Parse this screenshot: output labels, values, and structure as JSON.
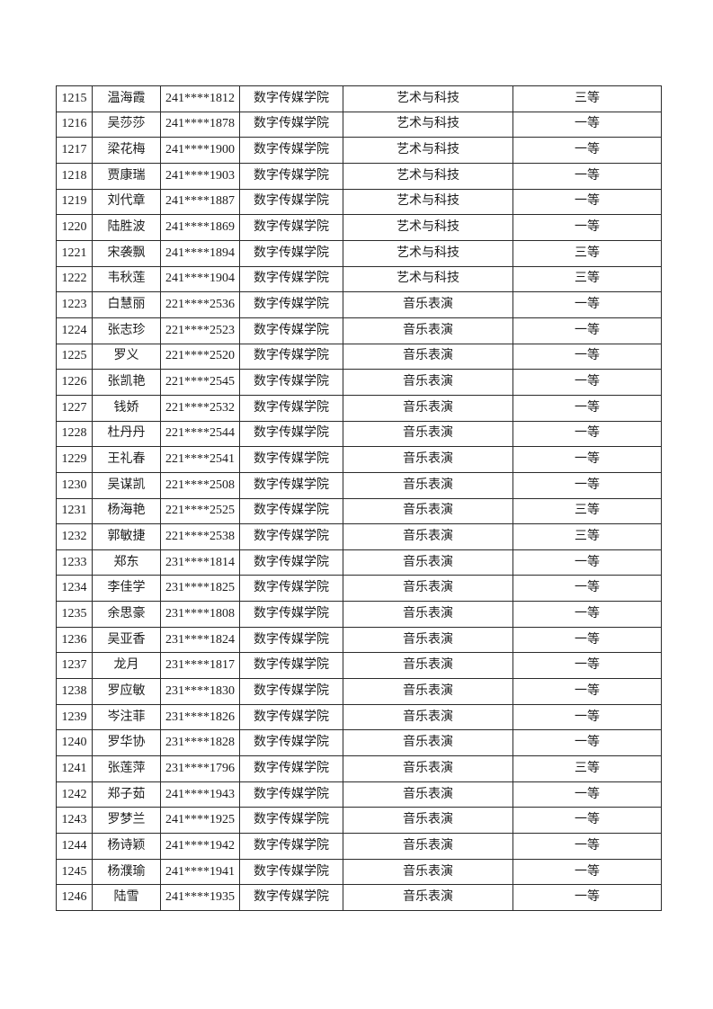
{
  "colors": {
    "background": "#ffffff",
    "border": "#2b2b2b",
    "text": "#1c1c1c"
  },
  "table": {
    "column_keys": [
      "serial",
      "name",
      "student-id",
      "college",
      "major",
      "award-level"
    ],
    "rows": [
      [
        "1215",
        "温海霞",
        "241****1812",
        "数字传媒学院",
        "艺术与科技",
        "三等"
      ],
      [
        "1216",
        "吴莎莎",
        "241****1878",
        "数字传媒学院",
        "艺术与科技",
        "一等"
      ],
      [
        "1217",
        "梁花梅",
        "241****1900",
        "数字传媒学院",
        "艺术与科技",
        "一等"
      ],
      [
        "1218",
        "贾康瑞",
        "241****1903",
        "数字传媒学院",
        "艺术与科技",
        "一等"
      ],
      [
        "1219",
        "刘代章",
        "241****1887",
        "数字传媒学院",
        "艺术与科技",
        "一等"
      ],
      [
        "1220",
        "陆胜波",
        "241****1869",
        "数字传媒学院",
        "艺术与科技",
        "一等"
      ],
      [
        "1221",
        "宋袭飘",
        "241****1894",
        "数字传媒学院",
        "艺术与科技",
        "三等"
      ],
      [
        "1222",
        "韦秋莲",
        "241****1904",
        "数字传媒学院",
        "艺术与科技",
        "三等"
      ],
      [
        "1223",
        "白慧丽",
        "221****2536",
        "数字传媒学院",
        "音乐表演",
        "一等"
      ],
      [
        "1224",
        "张志珍",
        "221****2523",
        "数字传媒学院",
        "音乐表演",
        "一等"
      ],
      [
        "1225",
        "罗义",
        "221****2520",
        "数字传媒学院",
        "音乐表演",
        "一等"
      ],
      [
        "1226",
        "张凯艳",
        "221****2545",
        "数字传媒学院",
        "音乐表演",
        "一等"
      ],
      [
        "1227",
        "钱娇",
        "221****2532",
        "数字传媒学院",
        "音乐表演",
        "一等"
      ],
      [
        "1228",
        "杜丹丹",
        "221****2544",
        "数字传媒学院",
        "音乐表演",
        "一等"
      ],
      [
        "1229",
        "王礼春",
        "221****2541",
        "数字传媒学院",
        "音乐表演",
        "一等"
      ],
      [
        "1230",
        "吴谋凯",
        "221****2508",
        "数字传媒学院",
        "音乐表演",
        "一等"
      ],
      [
        "1231",
        "杨海艳",
        "221****2525",
        "数字传媒学院",
        "音乐表演",
        "三等"
      ],
      [
        "1232",
        "郭敏捷",
        "221****2538",
        "数字传媒学院",
        "音乐表演",
        "三等"
      ],
      [
        "1233",
        "郑东",
        "231****1814",
        "数字传媒学院",
        "音乐表演",
        "一等"
      ],
      [
        "1234",
        "李佳学",
        "231****1825",
        "数字传媒学院",
        "音乐表演",
        "一等"
      ],
      [
        "1235",
        "余思豪",
        "231****1808",
        "数字传媒学院",
        "音乐表演",
        "一等"
      ],
      [
        "1236",
        "吴亚香",
        "231****1824",
        "数字传媒学院",
        "音乐表演",
        "一等"
      ],
      [
        "1237",
        "龙月",
        "231****1817",
        "数字传媒学院",
        "音乐表演",
        "一等"
      ],
      [
        "1238",
        "罗应敏",
        "231****1830",
        "数字传媒学院",
        "音乐表演",
        "一等"
      ],
      [
        "1239",
        "岑注菲",
        "231****1826",
        "数字传媒学院",
        "音乐表演",
        "一等"
      ],
      [
        "1240",
        "罗华协",
        "231****1828",
        "数字传媒学院",
        "音乐表演",
        "一等"
      ],
      [
        "1241",
        "张莲萍",
        "231****1796",
        "数字传媒学院",
        "音乐表演",
        "三等"
      ],
      [
        "1242",
        "郑子茹",
        "241****1943",
        "数字传媒学院",
        "音乐表演",
        "一等"
      ],
      [
        "1243",
        "罗梦兰",
        "241****1925",
        "数字传媒学院",
        "音乐表演",
        "一等"
      ],
      [
        "1244",
        "杨诗颖",
        "241****1942",
        "数字传媒学院",
        "音乐表演",
        "一等"
      ],
      [
        "1245",
        "杨濮瑜",
        "241****1941",
        "数字传媒学院",
        "音乐表演",
        "一等"
      ],
      [
        "1246",
        "陆雪",
        "241****1935",
        "数字传媒学院",
        "音乐表演",
        "一等"
      ]
    ]
  }
}
